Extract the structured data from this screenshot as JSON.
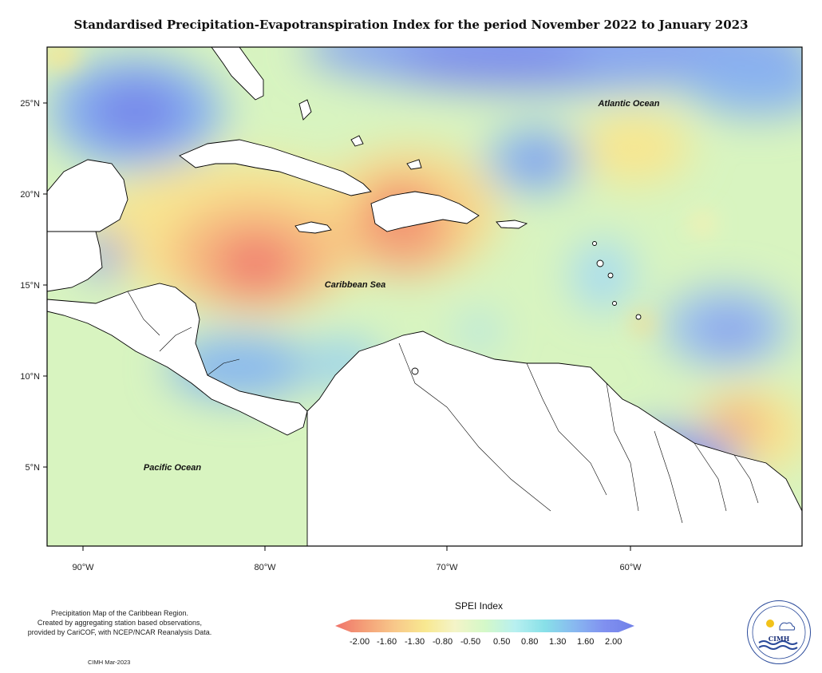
{
  "title": "Standardised Precipitation-Evapotranspiration Index for the period November 2022 to January 2023",
  "map": {
    "lat_ticks": [
      "25°N",
      "20°N",
      "15°N",
      "10°N",
      "5°N"
    ],
    "lon_ticks": [
      "90°W",
      "80°W",
      "70°W",
      "60°W"
    ],
    "labels": {
      "atlantic": "Atlantic Ocean",
      "caribbean": "Caribbean Sea",
      "pacific": "Pacific Ocean"
    }
  },
  "legend": {
    "title": "SPEI Index",
    "ticks": [
      "-2.00",
      "-1.60",
      "-1.30",
      "-0.80",
      "-0.50",
      "0.50",
      "0.80",
      "1.30",
      "1.60",
      "2.00"
    ],
    "colors": [
      "#f0736a",
      "#f4a078",
      "#f8c88a",
      "#f8e890",
      "#f4f4c8",
      "#d4f8c8",
      "#b8f0f0",
      "#88e0e8",
      "#88b8f0",
      "#8090f0",
      "#7080e8"
    ]
  },
  "footer": {
    "line1": "Precipitation Map of the Caribbean Region.",
    "line2": "Created by aggregating station based observations,",
    "line3": "provided by CariCOF, with NCEP/NCAR Reanalysis Data.",
    "credit": "CIMH Mar-2023"
  },
  "logo": {
    "text": "CIMH"
  }
}
